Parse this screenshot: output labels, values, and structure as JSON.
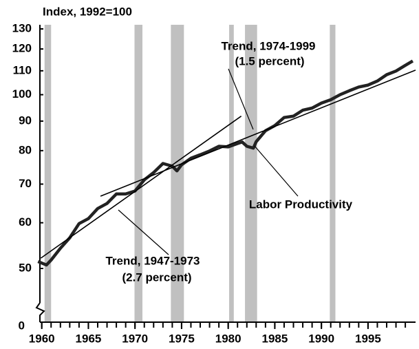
{
  "chart_data": {
    "type": "line",
    "title": "Index, 1992=100",
    "yscale": "log",
    "ylim": [
      50,
      130
    ],
    "yticks": [
      50,
      60,
      70,
      80,
      90,
      100,
      110,
      120,
      130
    ],
    "y_break_tick": 0,
    "xlim": [
      1959.8,
      2000.1
    ],
    "xticks": [
      1960,
      1965,
      1970,
      1975,
      1980,
      1985,
      1990,
      1995
    ],
    "xminorticks": [
      1960,
      1961,
      1962,
      1963,
      1964,
      1965,
      1966,
      1967,
      1968,
      1969,
      1970,
      1971,
      1972,
      1973,
      1974,
      1975,
      1976,
      1977,
      1978,
      1979,
      1980,
      1981,
      1982,
      1983,
      1984,
      1985,
      1986,
      1987,
      1988,
      1989,
      1990,
      1991,
      1992,
      1993,
      1994,
      1995,
      1996,
      1997,
      1998,
      1999
    ],
    "shaded_periods": [
      [
        1960.3,
        1961.0
      ],
      [
        1969.95,
        1970.8
      ],
      [
        1973.85,
        1975.25
      ],
      [
        1980.1,
        1980.6
      ],
      [
        1981.8,
        1983.1
      ],
      [
        1990.9,
        1991.5
      ]
    ],
    "shade_color": "#c0c0c0",
    "series": [
      {
        "name": "Labor Productivity",
        "color": "#222222",
        "x": [
          1959.6,
          1960.5,
          1961,
          1962,
          1963,
          1964,
          1965,
          1966,
          1967,
          1968,
          1969,
          1970,
          1971,
          1972,
          1973,
          1974,
          1974.5,
          1975,
          1976,
          1977,
          1978,
          1979,
          1980,
          1981,
          1981.5,
          1982,
          1982.7,
          1983,
          1984,
          1985,
          1986,
          1987,
          1988,
          1989,
          1990,
          1991,
          1992,
          1993,
          1994,
          1995,
          1996,
          1997,
          1998,
          1999,
          1999.8
        ],
        "values": [
          51.4,
          50.7,
          51.7,
          54.2,
          56.5,
          59.8,
          61.0,
          63.5,
          64.8,
          67.3,
          67.3,
          68.1,
          71.2,
          73.3,
          76.0,
          75.2,
          73.8,
          75.6,
          77.6,
          78.7,
          79.9,
          81.4,
          81.2,
          82.3,
          82.8,
          81.4,
          80.8,
          82.9,
          86.6,
          88.4,
          91.3,
          91.8,
          94.0,
          94.8,
          96.7,
          98.0,
          100,
          101.6,
          103.1,
          103.9,
          105.6,
          108.3,
          109.9,
          112.4,
          114.4
        ]
      },
      {
        "name": "Trend, 1947-1973",
        "note": "(2.7 percent)",
        "color": "#000000",
        "x": [
          1959.9,
          1981.4
        ],
        "values": [
          52.1,
          91.8
        ]
      },
      {
        "name": "Trend, 1974-1999",
        "note": "(1.5 percent)",
        "color": "#000000",
        "x": [
          1966.3,
          2000.1
        ],
        "values": [
          66.7,
          110.3
        ]
      }
    ]
  }
}
